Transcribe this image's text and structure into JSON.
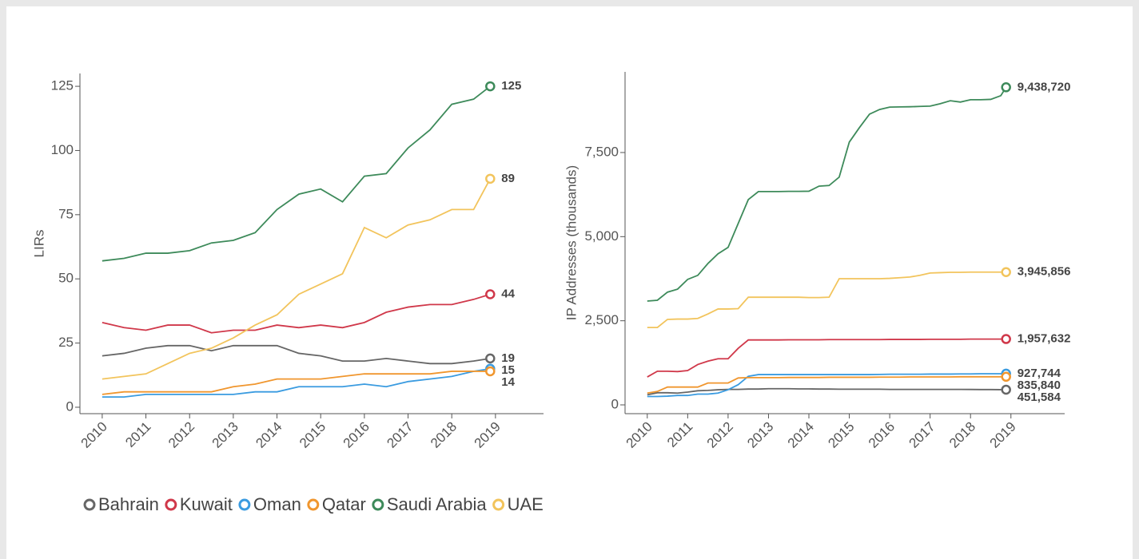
{
  "chart_data": [
    {
      "type": "line",
      "y_label": "LIRs",
      "x": [
        2010,
        2010.5,
        2011,
        2011.5,
        2012,
        2012.5,
        2013,
        2013.5,
        2014,
        2014.5,
        2015,
        2015.5,
        2016,
        2016.5,
        2017,
        2017.5,
        2018,
        2018.5,
        2018.88
      ],
      "xlim": [
        2009.49,
        2020.1
      ],
      "xticks": [
        2010,
        2011,
        2012,
        2013,
        2014,
        2015,
        2016,
        2017,
        2018,
        2019
      ],
      "ylim": [
        -2.5,
        130
      ],
      "yticks": [
        0,
        25,
        50,
        75,
        100,
        125
      ],
      "series": [
        {
          "name": "Bahrain",
          "color": "#666666",
          "values": [
            20,
            21,
            23,
            24,
            24,
            22,
            24,
            24,
            24,
            21,
            20,
            18,
            18,
            19,
            18,
            17,
            17,
            18,
            19
          ]
        },
        {
          "name": "Kuwait",
          "color": "#d0384a",
          "values": [
            33,
            31,
            30,
            32,
            32,
            29,
            30,
            30,
            32,
            31,
            32,
            31,
            33,
            37,
            39,
            40,
            40,
            42,
            44
          ]
        },
        {
          "name": "Oman",
          "color": "#3a9be0",
          "values": [
            4,
            4,
            5,
            5,
            5,
            5,
            5,
            6,
            6,
            8,
            8,
            8,
            9,
            8,
            10,
            11,
            12,
            14,
            15
          ]
        },
        {
          "name": "Qatar",
          "color": "#f0962e",
          "values": [
            5,
            6,
            6,
            6,
            6,
            6,
            8,
            9,
            11,
            11,
            11,
            12,
            13,
            13,
            13,
            13,
            14,
            14,
            14
          ]
        },
        {
          "name": "Saudi Arabia",
          "color": "#3d8a5a",
          "values": [
            57,
            58,
            60,
            60,
            61,
            64,
            65,
            68,
            77,
            83,
            85,
            80,
            90,
            91,
            101,
            108,
            118,
            120,
            125
          ]
        },
        {
          "name": "UAE",
          "color": "#f2c45c",
          "values": [
            11,
            12,
            13,
            17,
            21,
            23,
            27,
            32,
            36,
            44,
            48,
            52,
            70,
            66,
            71,
            73,
            77,
            77,
            89
          ]
        }
      ]
    },
    {
      "type": "line",
      "y_label": "IP Addresses (thousands)",
      "x": [
        2010,
        2010.25,
        2010.5,
        2010.75,
        2011,
        2011.25,
        2011.5,
        2011.75,
        2012,
        2012.25,
        2012.5,
        2012.75,
        2013,
        2013.25,
        2013.5,
        2013.75,
        2014,
        2014.25,
        2014.5,
        2014.75,
        2015,
        2015.25,
        2015.5,
        2015.75,
        2016,
        2016.25,
        2016.5,
        2016.75,
        2017,
        2017.25,
        2017.5,
        2017.75,
        2018,
        2018.25,
        2018.5,
        2018.75,
        2018.88
      ],
      "xlim": [
        2009.45,
        2020.33
      ],
      "xticks": [
        2010,
        2011,
        2012,
        2013,
        2014,
        2015,
        2016,
        2017,
        2018,
        2019
      ],
      "ylim": [
        -261,
        9897
      ],
      "yticks": [
        0,
        {
          "value": 2500,
          "label": "2,500"
        },
        {
          "value": 5000,
          "label": "5,000"
        },
        {
          "value": 7500,
          "label": "7,500"
        }
      ],
      "series": [
        {
          "name": "Bahrain",
          "color": "#666666",
          "end_label": "451,584",
          "values": [
            300,
            360,
            360,
            350,
            380,
            420,
            430,
            450,
            460,
            460,
            470,
            470,
            480,
            480,
            480,
            475,
            475,
            470,
            470,
            465,
            465,
            465,
            465,
            465,
            460,
            460,
            460,
            460,
            460,
            460,
            460,
            460,
            458,
            455,
            455,
            452,
            451.584
          ]
        },
        {
          "name": "Kuwait",
          "color": "#d0384a",
          "end_label": "1,957,632",
          "values": [
            830,
            1000,
            1000,
            990,
            1020,
            1200,
            1300,
            1370,
            1370,
            1680,
            1930,
            1930,
            1930,
            1930,
            1935,
            1935,
            1935,
            1935,
            1940,
            1940,
            1940,
            1940,
            1940,
            1940,
            1945,
            1945,
            1945,
            1945,
            1950,
            1950,
            1950,
            1950,
            1955,
            1955,
            1955,
            1955,
            1957.632
          ]
        },
        {
          "name": "Oman",
          "color": "#3a9be0",
          "end_label": "927,744",
          "values": [
            250,
            250,
            260,
            280,
            280,
            320,
            320,
            350,
            450,
            600,
            850,
            900,
            900,
            900,
            900,
            900,
            900,
            900,
            900,
            900,
            900,
            900,
            900,
            905,
            910,
            910,
            910,
            910,
            915,
            915,
            915,
            920,
            920,
            925,
            925,
            925,
            927.744
          ]
        },
        {
          "name": "Qatar",
          "color": "#f0962e",
          "end_label": "835,840",
          "values": [
            350,
            400,
            530,
            530,
            530,
            530,
            650,
            650,
            650,
            800,
            810,
            810,
            810,
            810,
            815,
            815,
            815,
            815,
            820,
            820,
            820,
            820,
            820,
            825,
            825,
            825,
            830,
            830,
            830,
            830,
            830,
            835,
            835,
            835,
            835,
            835,
            835.84
          ]
        },
        {
          "name": "Saudi Arabia",
          "color": "#3d8a5a",
          "end_label": "9,438,720",
          "values": [
            3086,
            3110,
            3350,
            3440,
            3730,
            3850,
            4200,
            4490,
            4680,
            5390,
            6100,
            6340,
            6340,
            6340,
            6345,
            6345,
            6350,
            6500,
            6520,
            6770,
            7810,
            8240,
            8640,
            8780,
            8850,
            8855,
            8860,
            8870,
            8880,
            8950,
            9040,
            9000,
            9070,
            9070,
            9080,
            9190,
            9438.72
          ]
        },
        {
          "name": "UAE",
          "color": "#f2c45c",
          "end_label": "3,945,856",
          "values": [
            2300,
            2300,
            2540,
            2550,
            2550,
            2570,
            2700,
            2850,
            2850,
            2860,
            3200,
            3200,
            3200,
            3200,
            3200,
            3200,
            3190,
            3190,
            3200,
            3750,
            3750,
            3750,
            3750,
            3750,
            3760,
            3780,
            3800,
            3850,
            3920,
            3930,
            3940,
            3940,
            3945,
            3945,
            3945,
            3945,
            3945.856
          ]
        }
      ]
    }
  ]
}
